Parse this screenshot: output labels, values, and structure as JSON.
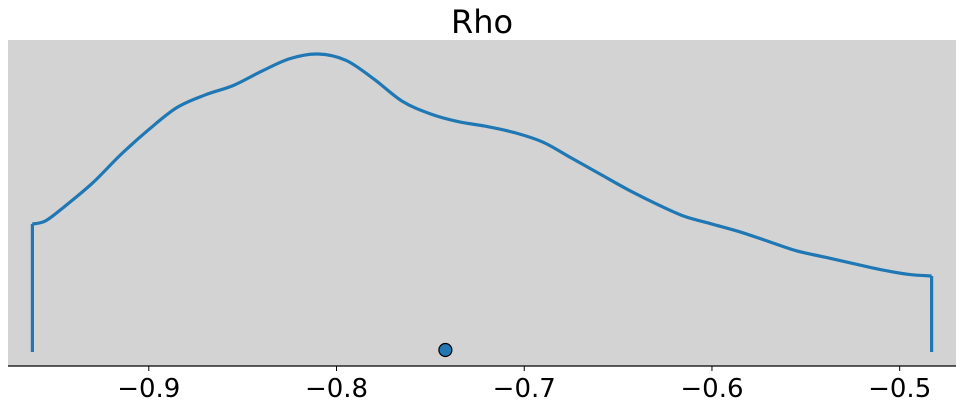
{
  "chart_data": {
    "type": "line",
    "title": "Rho",
    "xlabel": "",
    "ylabel": "",
    "xlim": [
      -0.975,
      -0.47
    ],
    "ylim": [
      0,
      1
    ],
    "grid": false,
    "legend": "none",
    "x_ticks": [
      -0.9,
      -0.8,
      -0.7,
      -0.6,
      -0.5
    ],
    "x_tick_labels": [
      "−0.9",
      "−0.8",
      "−0.7",
      "−0.6",
      "−0.5"
    ],
    "density_series": {
      "x": [
        -0.962,
        -0.955,
        -0.945,
        -0.93,
        -0.915,
        -0.9,
        -0.885,
        -0.87,
        -0.855,
        -0.84,
        -0.825,
        -0.81,
        -0.795,
        -0.78,
        -0.765,
        -0.75,
        -0.735,
        -0.72,
        -0.705,
        -0.69,
        -0.675,
        -0.66,
        -0.645,
        -0.63,
        -0.615,
        -0.6,
        -0.585,
        -0.57,
        -0.555,
        -0.54,
        -0.525,
        -0.51,
        -0.495,
        -0.483
      ],
      "y": [
        0.4,
        0.41,
        0.455,
        0.53,
        0.62,
        0.7,
        0.77,
        0.81,
        0.84,
        0.885,
        0.925,
        0.94,
        0.92,
        0.86,
        0.79,
        0.75,
        0.725,
        0.71,
        0.69,
        0.66,
        0.61,
        0.56,
        0.51,
        0.465,
        0.425,
        0.4,
        0.375,
        0.345,
        0.315,
        0.295,
        0.275,
        0.255,
        0.24,
        0.235
      ]
    },
    "boundary_lines": [
      {
        "x": -0.962
      },
      {
        "x": -0.483
      }
    ],
    "point_estimate": {
      "x": -0.742,
      "y": 0.0
    },
    "colors": {
      "line": "#1f77b4",
      "point_fill": "#1f77b4",
      "point_edge": "#000000",
      "plot_background": "#d3d3d3",
      "page_background": "#ffffff",
      "axis": "#000000"
    }
  }
}
